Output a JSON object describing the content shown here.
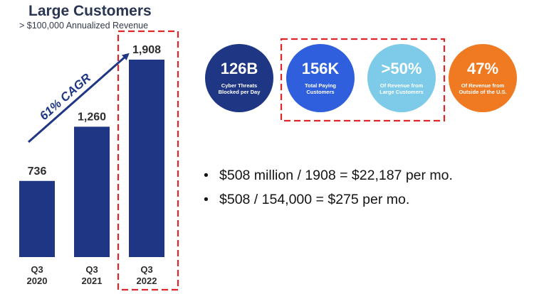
{
  "header": {
    "title": "Large Customers",
    "subtitle": "> $100,000 Annualized Revenue"
  },
  "chart_data": {
    "type": "bar",
    "title": "Large Customers",
    "subtitle": "> $100,000 Annualized Revenue",
    "categories": [
      "Q3\n2020",
      "Q3\n2021",
      "Q3\n2022"
    ],
    "category_lines": [
      [
        "Q3",
        "2020"
      ],
      [
        "Q3",
        "2021"
      ],
      [
        "Q3",
        "2022"
      ]
    ],
    "values": [
      736,
      1260,
      1908
    ],
    "value_labels": [
      "736",
      "1,260",
      "1,908"
    ],
    "ylim": [
      0,
      1908
    ],
    "annotation": "61% CAGR",
    "bar_color": "#1e3683",
    "highlighted_category": "Q3\n2022",
    "highlight_color": "#e0262a"
  },
  "stats": [
    {
      "value": "126B",
      "desc_lines": [
        "Cyber Threats",
        "Blocked per Day"
      ],
      "color": "#1e3683"
    },
    {
      "value": "156K",
      "desc_lines": [
        "Total Paying",
        "Customers"
      ],
      "color": "#2f5fdd"
    },
    {
      "value": ">50%",
      "desc_lines": [
        "Of Revenue from",
        "Large Customers"
      ],
      "color": "#7dcbe8"
    },
    {
      "value": "47%",
      "desc_lines": [
        "Of Revenue from",
        "Outside of the U.S."
      ],
      "color": "#ef7a22"
    }
  ],
  "bullets": [
    "$508 million / 1908 = $22,187 per mo.",
    "$508 / 154,000 = $275 per mo."
  ]
}
